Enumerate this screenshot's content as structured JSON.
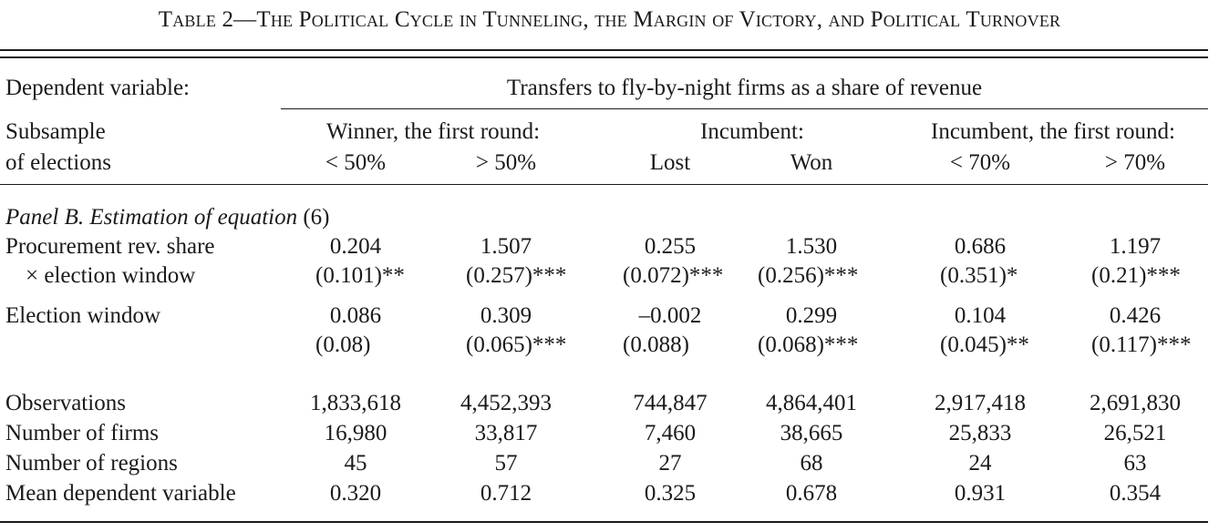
{
  "title": "Table 2—The Political Cycle in Tunneling, the Margin of Victory, and Political Turnover",
  "header": {
    "dep_var_label": "Dependent variable:",
    "dep_var_value": "Transfers to fly-by-night firms as a share of revenue",
    "subsample_line1": "Subsample",
    "subsample_line2": "of elections",
    "groups": [
      {
        "label": "Winner, the first round:",
        "cols": [
          "< 50%",
          "> 50%"
        ]
      },
      {
        "label": "Incumbent:",
        "cols": [
          "Lost",
          "Won"
        ]
      },
      {
        "label": "Incumbent, the first round:",
        "cols": [
          "< 70%",
          "> 70%"
        ]
      }
    ]
  },
  "panel": {
    "label_italic": "Panel B. Estimation of equation",
    "label_num": "(6)"
  },
  "rows": [
    {
      "label": "Procurement rev. share",
      "label2": "× election window",
      "coef": [
        "0.204",
        "1.507",
        "0.255",
        "1.530",
        "0.686",
        "1.197"
      ],
      "se": [
        "(0.101)**",
        "(0.257)***",
        "(0.072)***",
        "(0.256)***",
        "(0.351)*",
        "(0.21)***"
      ]
    },
    {
      "label": "Election window",
      "coef": [
        "0.086",
        "0.309",
        "–0.002",
        "0.299",
        "0.104",
        "0.426"
      ],
      "se": [
        "(0.08)",
        "(0.065)***",
        "(0.088)",
        "(0.068)***",
        "(0.045)**",
        "(0.117)***"
      ]
    }
  ],
  "stats": [
    {
      "label": "Observations",
      "values": [
        "1,833,618",
        "4,452,393",
        "744,847",
        "4,864,401",
        "2,917,418",
        "2,691,830"
      ]
    },
    {
      "label": "Number of firms",
      "values": [
        "16,980",
        "33,817",
        "7,460",
        "38,665",
        "25,833",
        "26,521"
      ]
    },
    {
      "label": "Number of regions",
      "values": [
        "45",
        "57",
        "27",
        "68",
        "24",
        "63"
      ]
    },
    {
      "label": "Mean dependent variable",
      "values": [
        "0.320",
        "0.712",
        "0.325",
        "0.678",
        "0.931",
        "0.354"
      ]
    }
  ]
}
